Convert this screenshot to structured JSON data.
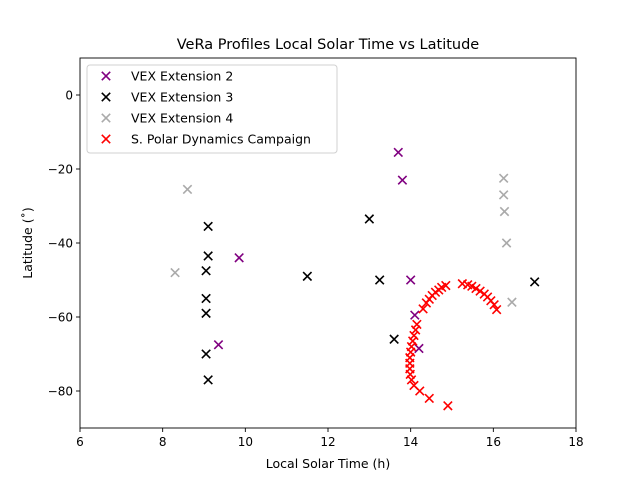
{
  "chart_data": {
    "type": "scatter",
    "title": "VeRa Profiles Local Solar Time vs Latitude",
    "xlabel": "Local Solar Time (h)",
    "ylabel": "Latitude (˚)",
    "xlim": [
      6,
      18
    ],
    "ylim": [
      -90,
      10
    ],
    "xticks": [
      6,
      8,
      10,
      12,
      14,
      16,
      18
    ],
    "yticks": [
      0,
      -20,
      -40,
      -60,
      -80
    ],
    "xtick_labels": [
      "6",
      "8",
      "10",
      "12",
      "14",
      "16",
      "18"
    ],
    "ytick_labels": [
      "0",
      "−20",
      "−40",
      "−60",
      "−80"
    ],
    "grid": false,
    "legend_position": "upper-left",
    "marker": "x",
    "series": [
      {
        "name": "VEX Extension 2",
        "color": "#800080",
        "points": [
          [
            13.7,
            -15.5
          ],
          [
            13.8,
            -23.0
          ],
          [
            9.85,
            -44.0
          ],
          [
            14.0,
            -50.0
          ],
          [
            14.1,
            -59.5
          ],
          [
            9.35,
            -67.5
          ],
          [
            14.2,
            -68.5
          ]
        ]
      },
      {
        "name": "VEX Extension 3",
        "color": "#000000",
        "points": [
          [
            9.1,
            -35.5
          ],
          [
            9.1,
            -43.5
          ],
          [
            9.05,
            -47.5
          ],
          [
            9.05,
            -55.0
          ],
          [
            9.05,
            -59.0
          ],
          [
            9.05,
            -70.0
          ],
          [
            9.1,
            -77.0
          ],
          [
            11.5,
            -49.0
          ],
          [
            13.0,
            -33.5
          ],
          [
            13.25,
            -50.0
          ],
          [
            13.6,
            -66.0
          ],
          [
            17.0,
            -50.5
          ]
        ]
      },
      {
        "name": "VEX Extension 4",
        "color": "#aaaaaa",
        "points": [
          [
            8.6,
            -25.5
          ],
          [
            8.3,
            -48.0
          ],
          [
            16.25,
            -22.5
          ],
          [
            16.25,
            -27.0
          ],
          [
            16.27,
            -31.5
          ],
          [
            16.32,
            -40.0
          ],
          [
            16.45,
            -56.0
          ]
        ]
      },
      {
        "name": "S. Polar Dynamics Campaign",
        "color": "#ff0000",
        "points": [
          [
            15.25,
            -51.0
          ],
          [
            15.38,
            -51.3
          ],
          [
            15.48,
            -51.7
          ],
          [
            15.58,
            -52.3
          ],
          [
            15.68,
            -53.0
          ],
          [
            15.78,
            -53.8
          ],
          [
            15.86,
            -54.6
          ],
          [
            15.94,
            -55.6
          ],
          [
            16.02,
            -56.7
          ],
          [
            16.08,
            -58.0
          ],
          [
            14.85,
            -51.5
          ],
          [
            14.75,
            -52.0
          ],
          [
            14.68,
            -52.7
          ],
          [
            14.6,
            -53.3
          ],
          [
            14.52,
            -54.2
          ],
          [
            14.45,
            -55.2
          ],
          [
            14.38,
            -56.2
          ],
          [
            14.3,
            -57.8
          ],
          [
            14.15,
            -62.0
          ],
          [
            14.12,
            -63.5
          ],
          [
            14.08,
            -65.0
          ],
          [
            14.05,
            -66.5
          ],
          [
            14.02,
            -68.0
          ],
          [
            14.0,
            -69.5
          ],
          [
            13.98,
            -71.0
          ],
          [
            13.98,
            -72.5
          ],
          [
            13.98,
            -74.0
          ],
          [
            13.99,
            -75.5
          ],
          [
            14.02,
            -77.0
          ],
          [
            14.08,
            -78.5
          ],
          [
            14.22,
            -80.0
          ],
          [
            14.45,
            -82.0
          ],
          [
            14.9,
            -84.0
          ]
        ]
      }
    ]
  }
}
